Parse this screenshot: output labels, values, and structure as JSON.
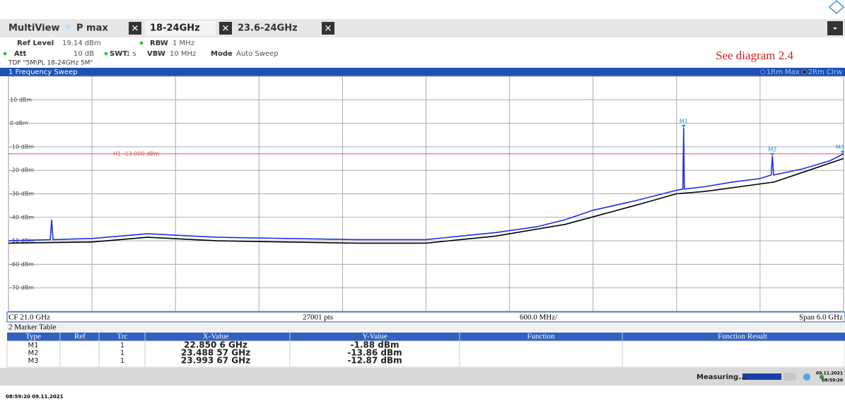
{
  "app": {
    "tabs": [
      "MultiView",
      "P max",
      "18-24GHz",
      "23.6-24GHz"
    ],
    "settings_row1": [
      {
        "label": "Ref Level",
        "value": "19.14 dBm"
      },
      {
        "label": "RBW",
        "value": "1 MHz"
      }
    ],
    "settings_row2": [
      {
        "label": "Att",
        "value": "10 dB"
      },
      {
        "label": "SWT",
        "value": "1 s"
      },
      {
        "label": "VBW",
        "value": "10 MHz"
      },
      {
        "label": "Mode",
        "value": "Auto Sweep"
      }
    ],
    "tdf": "TDF \"5M\\PL 18-24GHz 5M\"",
    "annotation": "See diagram 2.4",
    "footer": {
      "cf": "CF 21.0 GHz",
      "points": "27001 pts",
      "div": "600.0 MHz/",
      "span": "Span 6.0 GHz"
    },
    "status": {
      "text": "Measuring...",
      "date": "09.11.2021",
      "time": "08:59:20"
    },
    "timestamp": "08:59:20 09.11.2021"
  },
  "chart_data": {
    "type": "line",
    "title": "1 Frequency Sweep",
    "xlim": [
      18,
      24
    ],
    "ylim": [
      -80,
      20
    ],
    "yticks": [
      {
        "value": 10,
        "label": "10 dBm"
      },
      {
        "value": 0,
        "label": "0 dBm"
      },
      {
        "value": -10,
        "label": "-10 dBm"
      },
      {
        "value": -20,
        "label": "-20 dBm"
      },
      {
        "value": -30,
        "label": "-30 dBm"
      },
      {
        "value": -40,
        "label": "-40 dBm"
      },
      {
        "value": -50,
        "label": "-50 dBm"
      },
      {
        "value": -60,
        "label": "-60 dBm"
      },
      {
        "value": -70,
        "label": "-70 dBm"
      }
    ],
    "grid": true,
    "hline": {
      "value": -13,
      "label": "H1 -13.000 dBm",
      "color": "#e05050"
    },
    "series": [
      {
        "name": "1Rm Max",
        "color": "#1f2fe0",
        "x": [
          18,
          18.3,
          18.31,
          18.32,
          18.6,
          19,
          19.5,
          20,
          20.5,
          21,
          21.5,
          21.8,
          22,
          22.2,
          22.5,
          22.8,
          22.845,
          22.8506,
          22.856,
          23,
          23.2,
          23.4,
          23.48,
          23.4886,
          23.497,
          23.7,
          23.9,
          24
        ],
        "values": [
          -50,
          -49.5,
          -41,
          -49.5,
          -49,
          -47,
          -48.5,
          -49,
          -49.5,
          -49.5,
          -46.5,
          -44,
          -41,
          -37,
          -33,
          -28.5,
          -28,
          -1.88,
          -28,
          -27,
          -25,
          -23.5,
          -22,
          -13.86,
          -22,
          -19.5,
          -16,
          -13
        ]
      },
      {
        "name": "2Rm Clrw",
        "color": "#000000",
        "x": [
          18,
          18.6,
          19,
          19.5,
          20,
          20.5,
          21,
          21.5,
          22,
          22.5,
          22.8,
          23,
          23.5,
          24
        ],
        "values": [
          -51,
          -50.5,
          -48.5,
          -50,
          -50.5,
          -51,
          -51,
          -48,
          -43,
          -35,
          -30,
          -29,
          -25,
          -15
        ]
      }
    ],
    "markers": [
      {
        "name": "M1",
        "x": 22.8506,
        "y": -1.88
      },
      {
        "name": "M2",
        "x": 23.48857,
        "y": -13.86
      },
      {
        "name": "M3",
        "x": 23.99367,
        "y": -12.87
      }
    ],
    "marker_color": "#1f8fe0"
  },
  "marker_table": {
    "title": "2 Marker Table",
    "columns": [
      "Type",
      "Ref",
      "Trc",
      "X-Value",
      "Y-Value",
      "Function",
      "Function Result"
    ],
    "rows": [
      [
        "M1",
        "",
        "1",
        "22.850 6 GHz",
        "-1.88 dBm",
        "",
        ""
      ],
      [
        "M2",
        "",
        "1",
        "23.488 57 GHz",
        "-13.86 dBm",
        "",
        ""
      ],
      [
        "M3",
        "",
        "1",
        "23.993 67 GHz",
        "-12.87 dBm",
        "",
        ""
      ]
    ]
  }
}
